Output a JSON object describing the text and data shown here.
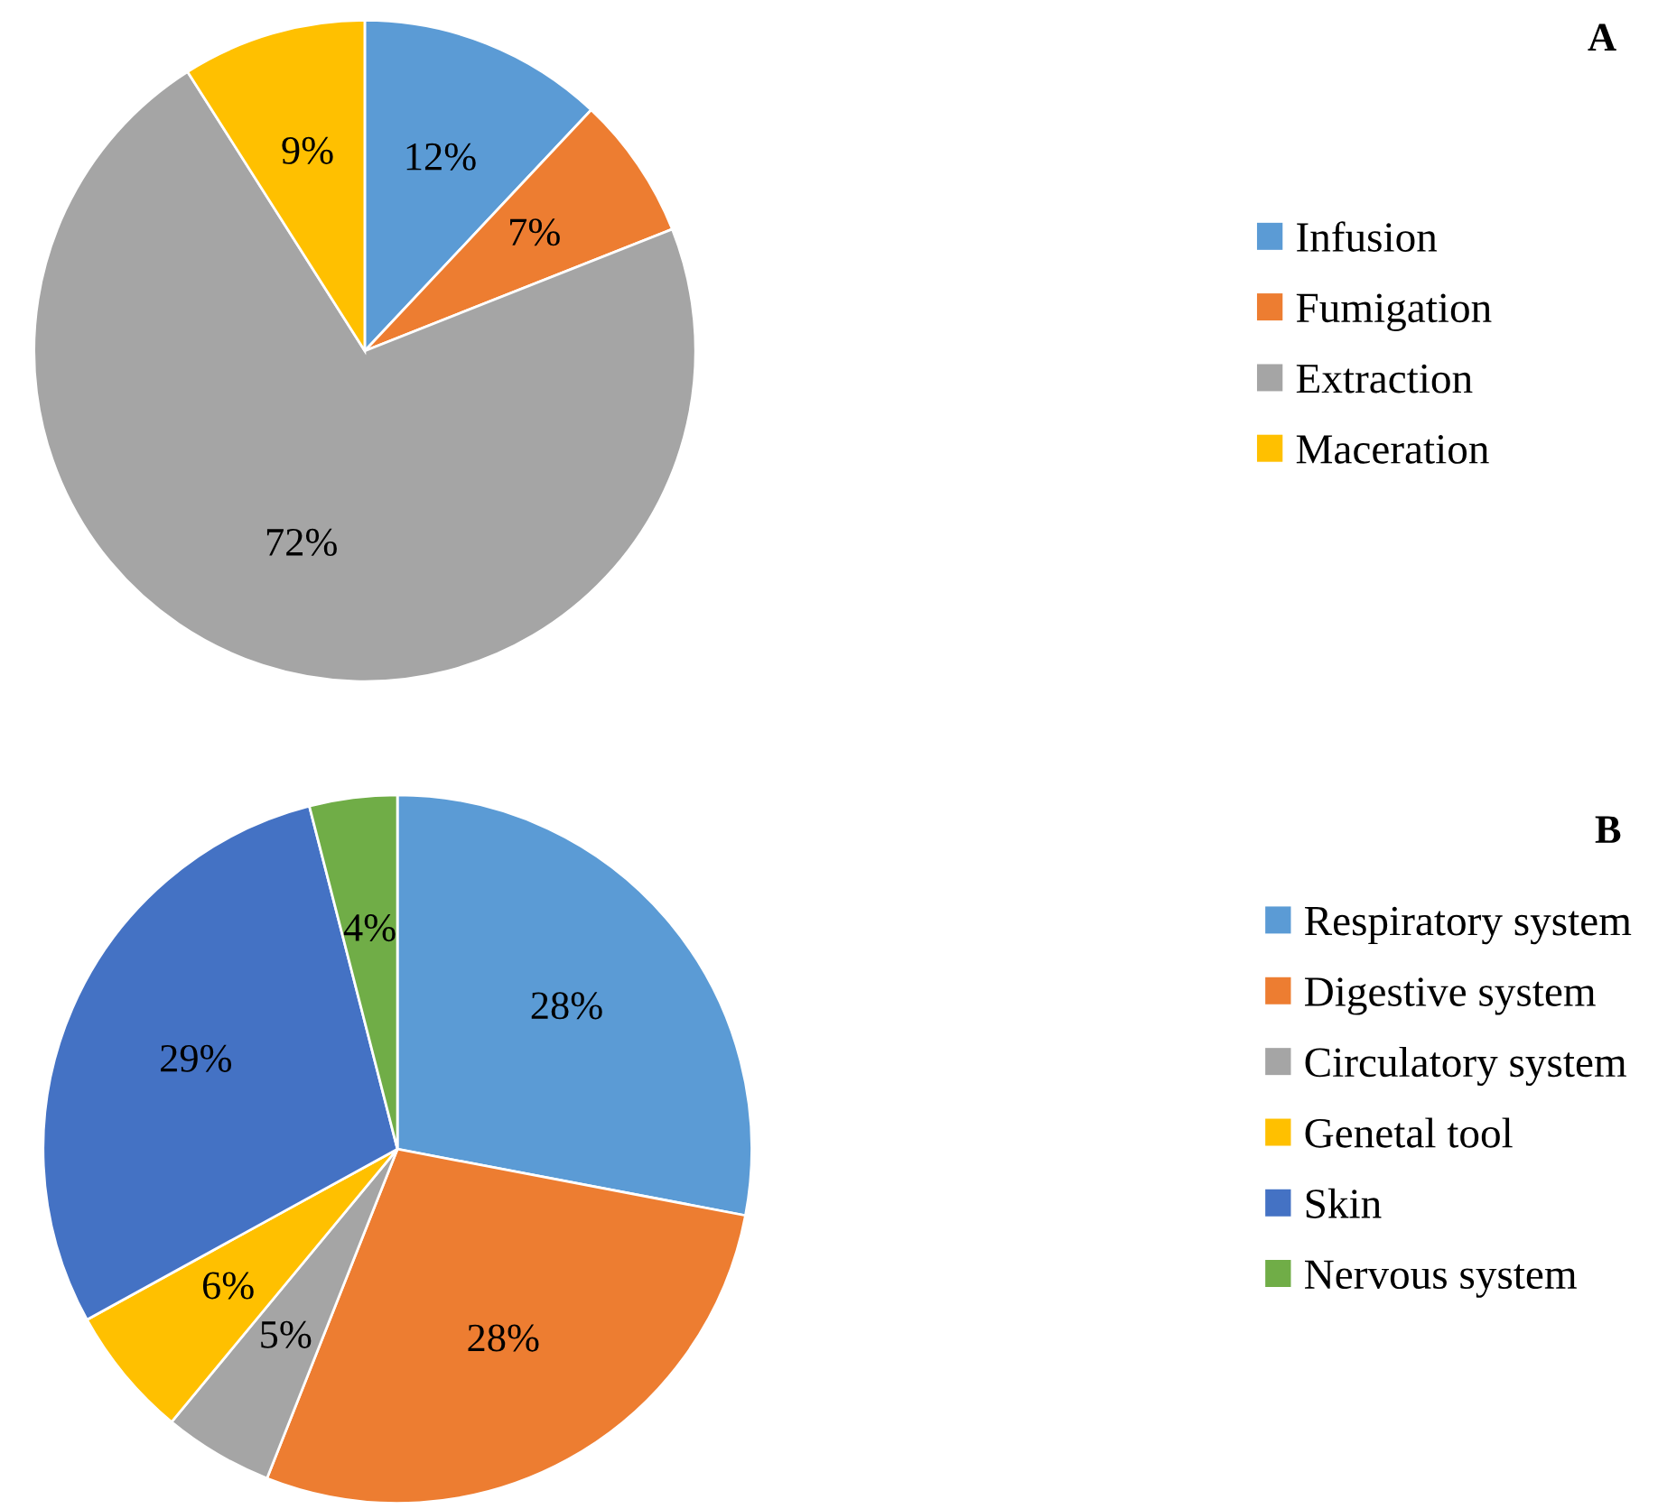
{
  "chart_data": [
    {
      "type": "pie",
      "title": "A",
      "categories": [
        "Infusion",
        "Fumigation",
        "Extraction",
        "Maceration"
      ],
      "values": [
        12,
        7,
        72,
        9
      ],
      "value_labels": [
        "12%",
        "7%",
        "72%",
        "9%"
      ],
      "colors": [
        "#5b9bd5",
        "#ed7d31",
        "#a5a5a5",
        "#ffc000"
      ],
      "legend": "right"
    },
    {
      "type": "pie",
      "title": "B",
      "categories": [
        "Respiratory system",
        "Digestive system",
        "Circulatory system",
        "Genetal tool",
        "Skin",
        "Nervous system"
      ],
      "values": [
        28,
        28,
        5,
        6,
        29,
        4
      ],
      "value_labels": [
        "28%",
        "28%",
        "5%",
        "6%",
        "29%",
        "4%"
      ],
      "colors": [
        "#5b9bd5",
        "#ed7d31",
        "#a5a5a5",
        "#ffc000",
        "#4472c4",
        "#70ad47"
      ],
      "legend": "right"
    }
  ]
}
